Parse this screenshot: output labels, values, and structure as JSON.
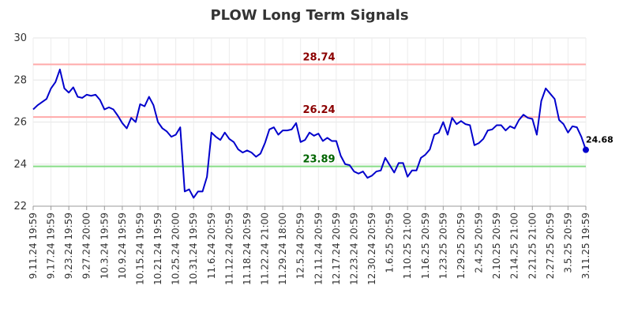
{
  "chart_data": {
    "type": "line",
    "title": "PLOW Long Term Signals",
    "xlabel": "",
    "ylabel": "",
    "ylim": [
      22,
      30
    ],
    "yticks": [
      22,
      24,
      26,
      28,
      30
    ],
    "grid": true,
    "x_tick_labels": [
      "9.11.24 19:59",
      "9.17.24 19:59",
      "9.23.24 19:59",
      "9.27.24 20:00",
      "10.3.24 19:59",
      "10.9.24 19:59",
      "10.15.24 19:59",
      "10.21.24 19:59",
      "10.25.24 20:00",
      "10.31.24 19:59",
      "11.6.24 20:59",
      "11.12.24 20:59",
      "11.18.24 20:59",
      "11.22.24 21:00",
      "11.29.24 18:00",
      "12.5.24 20:59",
      "12.11.24 20:59",
      "12.17.24 20:59",
      "12.23.24 20:59",
      "12.30.24 20:59",
      "1.6.25 20:59",
      "1.10.25 21:00",
      "1.16.25 20:59",
      "1.23.25 20:59",
      "1.29.25 20:59",
      "2.4.25 20:59",
      "2.10.25 20:59",
      "2.14.25 21:00",
      "2.21.25 21:00",
      "2.27.25 20:59",
      "3.5.25 20:59",
      "3.11.25 19:59"
    ],
    "series": [
      {
        "color": "#0000cc",
        "values": [
          26.6,
          26.8,
          26.95,
          27.1,
          27.6,
          27.9,
          28.5,
          27.6,
          27.4,
          27.65,
          27.2,
          27.15,
          27.3,
          27.25,
          27.3,
          27.05,
          26.6,
          26.7,
          26.6,
          26.3,
          25.95,
          25.7,
          26.2,
          26.0,
          26.85,
          26.75,
          27.2,
          26.8,
          26.0,
          25.7,
          25.55,
          25.3,
          25.4,
          25.75,
          22.7,
          22.8,
          22.4,
          22.7,
          22.7,
          23.4,
          25.5,
          25.3,
          25.15,
          25.5,
          25.2,
          25.05,
          24.7,
          24.55,
          24.65,
          24.55,
          24.35,
          24.5,
          25.0,
          25.65,
          25.75,
          25.4,
          25.6,
          25.6,
          25.65,
          25.95,
          25.05,
          25.15,
          25.5,
          25.35,
          25.45,
          25.1,
          25.25,
          25.1,
          25.1,
          24.4,
          24.0,
          23.95,
          23.65,
          23.55,
          23.65,
          23.35,
          23.45,
          23.65,
          23.7,
          24.3,
          23.95,
          23.6,
          24.05,
          24.05,
          23.4,
          23.7,
          23.7,
          24.3,
          24.45,
          24.7,
          25.4,
          25.5,
          26.0,
          25.4,
          26.2,
          25.9,
          26.05,
          25.9,
          25.85,
          24.9,
          25.0,
          25.2,
          25.6,
          25.65,
          25.85,
          25.85,
          25.6,
          25.8,
          25.7,
          26.1,
          26.35,
          26.2,
          26.15,
          25.4,
          27.0,
          27.6,
          27.35,
          27.1,
          26.1,
          25.9,
          25.5,
          25.8,
          25.75,
          25.3,
          24.68
        ]
      }
    ],
    "levels": [
      {
        "value": 28.74,
        "label": "28.74",
        "line_color": "#ffaaaa",
        "text_color": "#8b0000"
      },
      {
        "value": 26.24,
        "label": "26.24",
        "line_color": "#ffaaaa",
        "text_color": "#8b0000"
      },
      {
        "value": 23.89,
        "label": "23.89",
        "line_color": "#88dd88",
        "text_color": "#006400"
      }
    ],
    "last_point": {
      "value": 24.68,
      "label": "24.68",
      "color": "#0000cc"
    }
  }
}
